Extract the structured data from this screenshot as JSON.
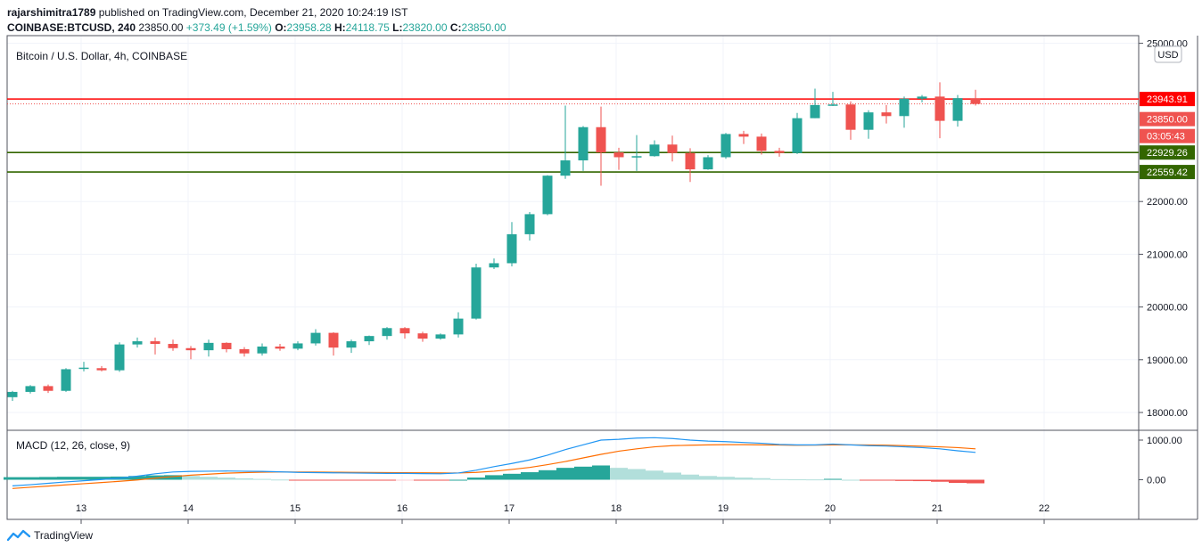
{
  "header": {
    "author": "rajarshimitra1789",
    "published_text": "published on TradingView.com, December 21, 2020 10:24:19 IST",
    "symbol": "COINBASE:BTCUSD, 240",
    "price": "23850.00",
    "change": "+373.49 (+1.59%)",
    "o_label": "O:",
    "o_value": "23958.28",
    "h_label": "H:",
    "h_value": "24118.75",
    "l_label": "L:",
    "l_value": "23820.00",
    "c_label": "C:",
    "c_value": "23850.00"
  },
  "chart_title": "Bitcoin / U.S. Dollar, 4h, COINBASE",
  "currency_badge": "USD",
  "macd_label": "MACD (12, 26, close, 9)",
  "footer": {
    "brand": "TradingView"
  },
  "colors": {
    "up": "#26a69a",
    "down": "#ef5350",
    "resistance": "#ff0000",
    "support": "#336600",
    "macd_line": "#2196f3",
    "signal_line": "#ff6d00",
    "hist_up_strong": "#26a69a",
    "hist_up_weak": "#b2dfdb",
    "hist_down_strong": "#ef5350",
    "hist_down_weak": "#ffcdd2"
  },
  "chart_data": {
    "type": "candlestick",
    "symbol": "COINBASE:BTCUSD",
    "interval": "4h",
    "x_ticks": [
      "13",
      "14",
      "15",
      "16",
      "17",
      "18",
      "19",
      "20",
      "21",
      "22"
    ],
    "y_ticks": [
      "25000.00",
      "22000.00",
      "21000.00",
      "20000.00",
      "19000.00",
      "18000.00"
    ],
    "ylim": [
      17750,
      25100
    ],
    "candles": [
      [
        18290,
        18390,
        18220,
        18410
      ],
      [
        18390,
        18500,
        18360,
        18520
      ],
      [
        18500,
        18410,
        18370,
        18530
      ],
      [
        18410,
        18820,
        18390,
        18840
      ],
      [
        18840,
        18850,
        18780,
        18960
      ],
      [
        18840,
        18800,
        18780,
        18880
      ],
      [
        18800,
        19290,
        18770,
        19330
      ],
      [
        19290,
        19350,
        19230,
        19420
      ],
      [
        19350,
        19300,
        19100,
        19420
      ],
      [
        19300,
        19220,
        19170,
        19380
      ],
      [
        19220,
        19180,
        19010,
        19260
      ],
      [
        19180,
        19320,
        19060,
        19380
      ],
      [
        19320,
        19200,
        19140,
        19330
      ],
      [
        19200,
        19120,
        19060,
        19240
      ],
      [
        19120,
        19250,
        19080,
        19310
      ],
      [
        19250,
        19210,
        19170,
        19300
      ],
      [
        19210,
        19310,
        19180,
        19350
      ],
      [
        19310,
        19510,
        19270,
        19580
      ],
      [
        19510,
        19230,
        19080,
        19520
      ],
      [
        19230,
        19350,
        19130,
        19380
      ],
      [
        19350,
        19450,
        19280,
        19460
      ],
      [
        19450,
        19600,
        19380,
        19620
      ],
      [
        19600,
        19500,
        19400,
        19620
      ],
      [
        19500,
        19400,
        19340,
        19530
      ],
      [
        19400,
        19480,
        19380,
        19500
      ],
      [
        19480,
        19780,
        19420,
        19900
      ],
      [
        19780,
        20750,
        19760,
        20820
      ],
      [
        20750,
        20830,
        20720,
        20920
      ],
      [
        20830,
        21380,
        20770,
        21610
      ],
      [
        21380,
        21760,
        21260,
        21800
      ],
      [
        21760,
        22490,
        21740,
        22500
      ],
      [
        22490,
        22780,
        22430,
        23820
      ],
      [
        22780,
        23410,
        22580,
        23430
      ],
      [
        23410,
        22930,
        22300,
        23800
      ],
      [
        22930,
        22840,
        22600,
        23020
      ],
      [
        22840,
        22860,
        22580,
        23260
      ],
      [
        22860,
        23080,
        22850,
        23160
      ],
      [
        23080,
        22920,
        22760,
        23250
      ],
      [
        22920,
        22610,
        22370,
        23010
      ],
      [
        22610,
        22840,
        22600,
        22880
      ],
      [
        22840,
        23280,
        22810,
        23300
      ],
      [
        23280,
        23230,
        23090,
        23340
      ],
      [
        23230,
        22960,
        22890,
        23290
      ],
      [
        22960,
        22920,
        22850,
        23020
      ],
      [
        22920,
        23580,
        22900,
        23680
      ],
      [
        23580,
        23830,
        23580,
        24140
      ],
      [
        23830,
        23840,
        23810,
        24080
      ],
      [
        23840,
        23360,
        23170,
        23900
      ],
      [
        23360,
        23690,
        23190,
        23730
      ],
      [
        23690,
        23620,
        23480,
        23830
      ],
      [
        23620,
        23950,
        23400,
        23990
      ],
      [
        23950,
        23990,
        23880,
        24020
      ],
      [
        23990,
        23530,
        23200,
        24260
      ],
      [
        23530,
        23960,
        23420,
        24020
      ],
      [
        23958.28,
        23850,
        23820,
        24118.75
      ]
    ],
    "resistance_level": "23943.91",
    "support_levels": [
      "22929.26",
      "22559.42"
    ],
    "last_price_label": "23850.00",
    "countdown_label": "03:05:43",
    "macd": {
      "label": "MACD (12, 26, close, 9)",
      "y_ticks": [
        "1000.00",
        "0.00"
      ],
      "ylim": [
        -200,
        1100
      ],
      "macd_line": [
        -155,
        -125,
        -90,
        -55,
        -25,
        5,
        40,
        90,
        150,
        195,
        210,
        215,
        220,
        215,
        210,
        200,
        185,
        180,
        175,
        170,
        165,
        160,
        160,
        155,
        150,
        170,
        240,
        330,
        410,
        500,
        620,
        760,
        880,
        1000,
        1020,
        1050,
        1060,
        1040,
        1000,
        975,
        960,
        940,
        920,
        890,
        880,
        880,
        900,
        880,
        860,
        850,
        830,
        810,
        780,
        730,
        690
      ],
      "signal_line": [
        -220,
        -190,
        -160,
        -130,
        -100,
        -70,
        -40,
        -5,
        40,
        80,
        115,
        140,
        165,
        180,
        190,
        195,
        195,
        193,
        190,
        187,
        184,
        180,
        177,
        175,
        172,
        170,
        185,
        215,
        260,
        310,
        380,
        460,
        550,
        640,
        720,
        780,
        830,
        860,
        870,
        880,
        885,
        885,
        880,
        875,
        870,
        872,
        878,
        880,
        878,
        870,
        860,
        845,
        830,
        810,
        780
      ],
      "histogram": [
        65,
        65,
        70,
        75,
        75,
        75,
        80,
        95,
        110,
        115,
        95,
        75,
        55,
        35,
        20,
        5,
        -10,
        -13,
        -15,
        -17,
        -19,
        -20,
        -17,
        -20,
        -22,
        0,
        55,
        115,
        150,
        190,
        240,
        300,
        330,
        360,
        300,
        270,
        230,
        180,
        130,
        95,
        75,
        55,
        40,
        15,
        10,
        8,
        22,
        0,
        -18,
        -20,
        -30,
        -35,
        -50,
        -80,
        -90
      ]
    }
  }
}
